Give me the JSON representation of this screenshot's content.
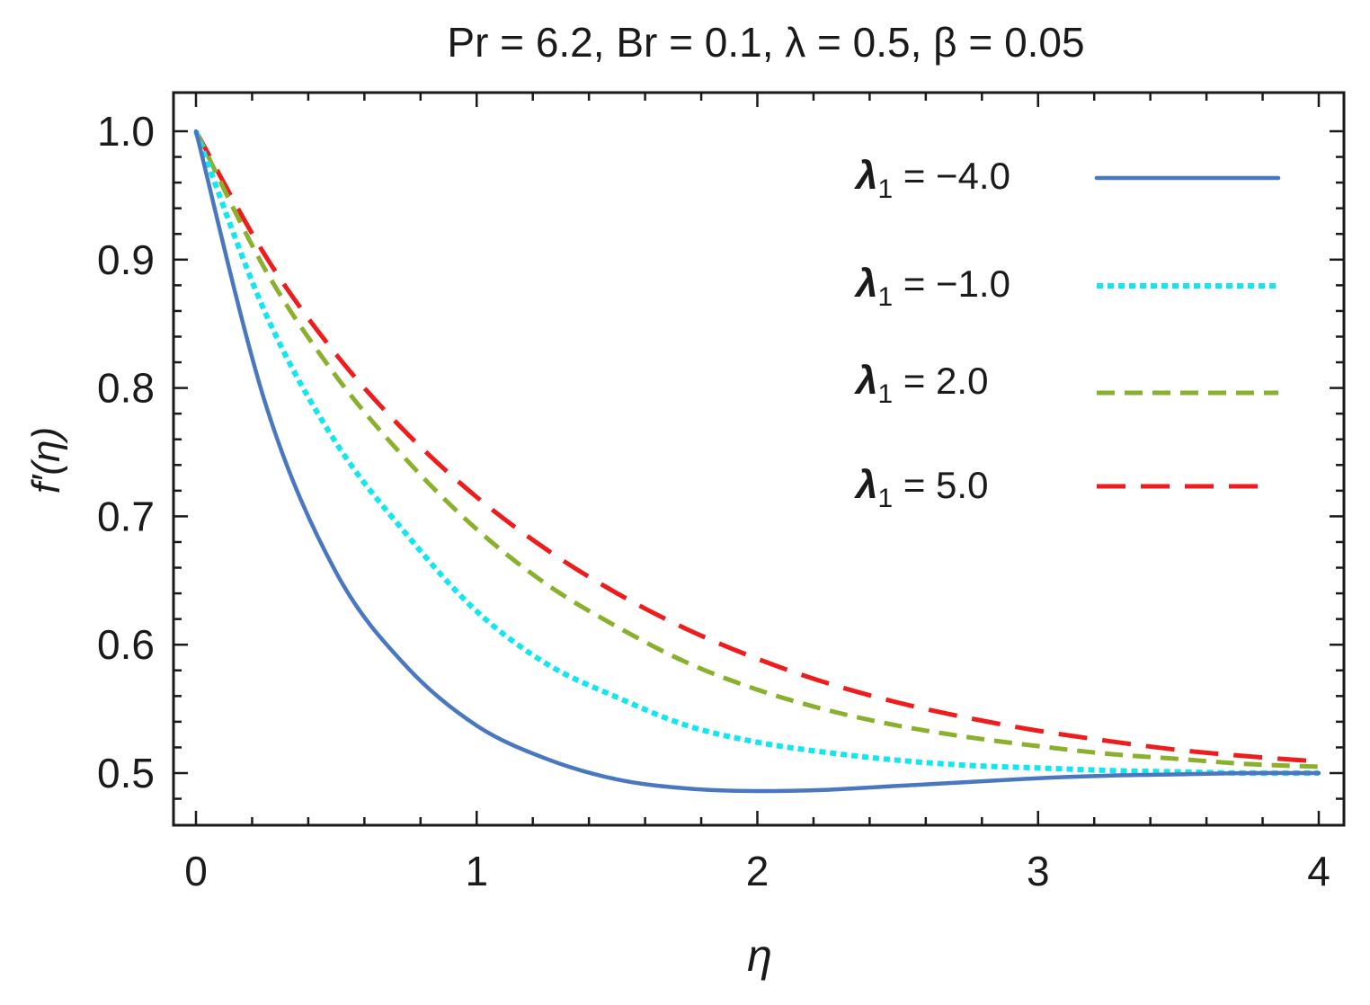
{
  "chart_data": {
    "type": "line",
    "title": "Pr = 6.2, Br = 0.1, λ = 0.5, β = 0.05",
    "xlabel": "η",
    "ylabel": "f′(η)",
    "xlim": [
      0,
      4
    ],
    "ylim": [
      0.455,
      1.03
    ],
    "x_ticks": [
      0,
      1,
      2,
      3,
      4
    ],
    "x_tick_labels": [
      "0",
      "1",
      "2",
      "3",
      "4"
    ],
    "y_ticks": [
      0.5,
      0.6,
      0.7,
      0.8,
      0.9,
      1.0
    ],
    "y_tick_labels": [
      "0.5",
      "0.6",
      "0.7",
      "0.8",
      "0.9",
      "1.0"
    ],
    "legend_position": "top-right",
    "grid": false,
    "x": [
      0,
      0.25,
      0.5,
      0.75,
      1.0,
      1.25,
      1.5,
      1.75,
      2.0,
      2.25,
      2.5,
      2.75,
      3.0,
      3.25,
      3.5,
      3.75,
      4.0
    ],
    "series": [
      {
        "name": "λ1 = −4.0",
        "legend_symbol": "λ",
        "legend_sub": "1",
        "legend_value": " = −4.0",
        "color": "#4a78c0",
        "dash": "solid",
        "values": [
          1.0,
          0.786,
          0.656,
          0.583,
          0.537,
          0.511,
          0.495,
          0.488,
          0.486,
          0.487,
          0.49,
          0.493,
          0.496,
          0.498,
          0.499,
          0.5,
          0.5
        ]
      },
      {
        "name": "λ1 = −1.0",
        "legend_symbol": "λ",
        "legend_sub": "1",
        "legend_value": " = −1.0",
        "color": "#14e6f0",
        "dash": "dotted",
        "values": [
          1.0,
          0.857,
          0.757,
          0.686,
          0.626,
          0.585,
          0.559,
          0.537,
          0.524,
          0.516,
          0.51,
          0.506,
          0.504,
          0.502,
          0.501,
          0.5,
          0.5
        ]
      },
      {
        "name": "λ1 = 2.0",
        "legend_symbol": "λ",
        "legend_sub": "1",
        "legend_value": " = 2.0",
        "color": "#8ab02e",
        "dash": "dashed-short",
        "values": [
          1.0,
          0.891,
          0.809,
          0.744,
          0.69,
          0.647,
          0.614,
          0.586,
          0.565,
          0.549,
          0.537,
          0.528,
          0.521,
          0.515,
          0.511,
          0.507,
          0.505
        ]
      },
      {
        "name": "λ1 = 5.0",
        "legend_symbol": "λ",
        "legend_sub": "1",
        "legend_value": " = 5.0",
        "color": "#ee1c1c",
        "dash": "dashed-long",
        "values": [
          1.0,
          0.902,
          0.826,
          0.765,
          0.715,
          0.674,
          0.64,
          0.612,
          0.589,
          0.57,
          0.555,
          0.543,
          0.533,
          0.525,
          0.518,
          0.513,
          0.509
        ]
      }
    ]
  }
}
